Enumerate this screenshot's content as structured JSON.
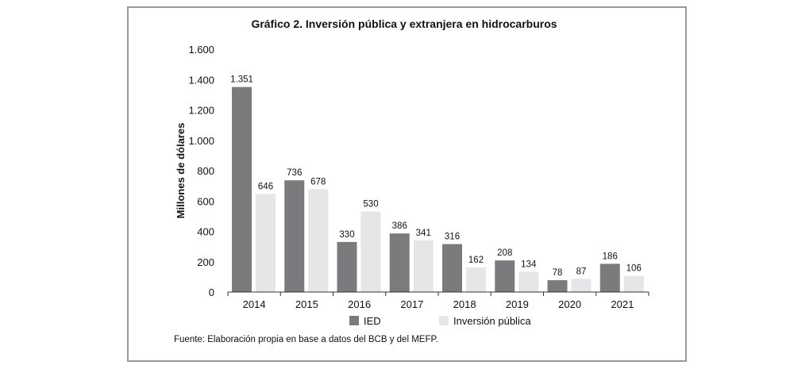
{
  "chart_data": {
    "type": "bar",
    "title": "Gráfico 2. Inversión pública y extranjera en hidrocarburos",
    "xlabel": "",
    "ylabel": "Millones de dólares",
    "ylim": [
      0,
      1600
    ],
    "yticks": [
      0,
      200,
      400,
      600,
      800,
      1000,
      1200,
      1400,
      1600
    ],
    "ytick_labels": [
      "0",
      "200",
      "400",
      "600",
      "800",
      "1.000",
      "1.200",
      "1.400",
      "1.600"
    ],
    "categories": [
      "2014",
      "2015",
      "2016",
      "2017",
      "2018",
      "2019",
      "2020",
      "2021"
    ],
    "series": [
      {
        "name": "IED",
        "color": "#7b7b7d",
        "values": [
          1351,
          736,
          330,
          386,
          316,
          208,
          78,
          186
        ],
        "labels": [
          "1.351",
          "736",
          "330",
          "386",
          "316",
          "208",
          "78",
          "186"
        ]
      },
      {
        "name": "Inversión pública",
        "color": "#e6e6e8",
        "values": [
          646,
          678,
          530,
          341,
          162,
          134,
          87,
          106
        ],
        "labels": [
          "646",
          "678",
          "530",
          "341",
          "162",
          "134",
          "87",
          "106"
        ]
      }
    ],
    "grid": false,
    "legend": "bottom-center",
    "source": "Fuente: Elaboración propia en base a datos del BCB y del MEFP."
  }
}
